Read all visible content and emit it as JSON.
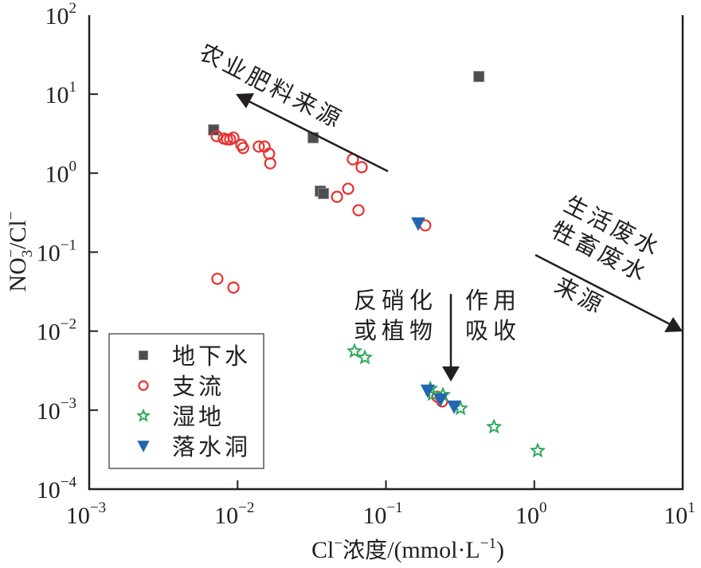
{
  "chart_data": {
    "type": "scatter",
    "title": "",
    "xlabel": "Cl⁻浓度/(mmol·L⁻¹)",
    "ylabel": "NO₃⁻/Cl⁻",
    "x_scale": "log",
    "y_scale": "log",
    "xlim": [
      0.001,
      10
    ],
    "ylim": [
      0.0001,
      100
    ],
    "x_ticks": [
      {
        "value": 0.001,
        "base": "10",
        "exp": "−3"
      },
      {
        "value": 0.01,
        "base": "10",
        "exp": "−2"
      },
      {
        "value": 0.1,
        "base": "10",
        "exp": "−1"
      },
      {
        "value": 1,
        "base": "10",
        "exp": "0"
      },
      {
        "value": 10,
        "base": "10",
        "exp": "1"
      }
    ],
    "y_ticks": [
      {
        "value": 100,
        "base": "10",
        "exp": "2"
      },
      {
        "value": 10,
        "base": "10",
        "exp": "1"
      },
      {
        "value": 1,
        "base": "10",
        "exp": "0"
      },
      {
        "value": 0.1,
        "base": "10",
        "exp": "−1"
      },
      {
        "value": 0.01,
        "base": "10",
        "exp": "−2"
      },
      {
        "value": 0.001,
        "base": "10",
        "exp": "−3"
      },
      {
        "value": 0.0001,
        "base": "10",
        "exp": "−4"
      }
    ],
    "grid": false,
    "legend_position": "bottom-left",
    "series": [
      {
        "name": "地下水",
        "marker": "square",
        "color": "#4d4d4f",
        "points": [
          [
            0.0069,
            3.53
          ],
          [
            0.0323,
            2.81
          ],
          [
            0.423,
            16.7
          ],
          [
            0.0361,
            0.592
          ],
          [
            0.0379,
            0.552
          ]
        ]
      },
      {
        "name": "支流",
        "marker": "circle-open",
        "color": "#e8312f",
        "points": [
          [
            0.00723,
            2.94
          ],
          [
            0.00807,
            2.74
          ],
          [
            0.00849,
            2.67
          ],
          [
            0.00891,
            2.67
          ],
          [
            0.00938,
            2.81
          ],
          [
            0.0106,
            2.28
          ],
          [
            0.0109,
            2.08
          ],
          [
            0.0139,
            2.17
          ],
          [
            0.0152,
            2.17
          ],
          [
            0.0163,
            1.76
          ],
          [
            0.0166,
            1.33
          ],
          [
            0.0598,
            1.5
          ],
          [
            0.0686,
            1.19
          ],
          [
            0.0468,
            0.502
          ],
          [
            0.0556,
            0.634
          ],
          [
            0.0653,
            0.339
          ],
          [
            0.184,
            0.218
          ],
          [
            0.00731,
            0.046
          ],
          [
            0.00938,
            0.0356
          ],
          [
            0.222,
            0.00148
          ],
          [
            0.239,
            0.00129
          ]
        ]
      },
      {
        "name": "湿地",
        "marker": "star-open",
        "color": "#2daa5c",
        "points": [
          [
            0.0614,
            0.00557
          ],
          [
            0.0721,
            0.00462
          ],
          [
            0.199,
            0.00187
          ],
          [
            0.206,
            0.00159
          ],
          [
            0.242,
            0.00156
          ],
          [
            0.318,
            0.00105
          ],
          [
            0.535,
            0.000614
          ],
          [
            1.054,
            0.000306
          ]
        ]
      },
      {
        "name": "落水洞",
        "marker": "triangle-down",
        "color": "#2166b0",
        "points": [
          [
            0.165,
            0.229
          ],
          [
            0.191,
            0.00175
          ],
          [
            0.233,
            0.00135
          ],
          [
            0.288,
            0.0011
          ]
        ]
      }
    ],
    "annotations": [
      {
        "text": "农业肥料来源",
        "arrow": "toward low Cl / high ratio"
      },
      {
        "text_lines": [
          "生活废水",
          "牲畜废水"
        ],
        "text_below": "来源",
        "arrow": "toward high Cl / low ratio"
      },
      {
        "text_lines": [
          "反硝化",
          "或植物"
        ],
        "text_lines_right": [
          "作用",
          "吸收"
        ],
        "arrow": "downward"
      }
    ]
  }
}
